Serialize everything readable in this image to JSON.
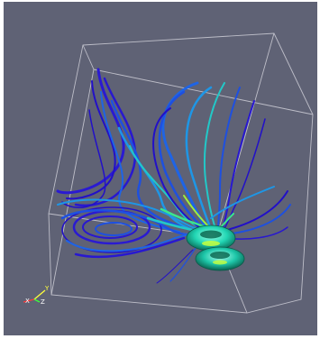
{
  "viewport": {
    "background": "#5f6275",
    "bounding_box_color": "#c8c8d2"
  },
  "orientation_axes": {
    "x_label": "X",
    "y_label": "Y",
    "z_label": "Z",
    "x_color": "#ff3b3b",
    "y_color": "#ffff3c",
    "z_color": "#3cff3c"
  },
  "streamlines": {
    "colormap": [
      "#2210c8",
      "#1e50e0",
      "#1e96e6",
      "#22c8c8",
      "#3ce68c",
      "#a0f03c"
    ]
  },
  "isosurface": {
    "upper_ring_color": "#22d6b4",
    "lower_ring_color": "#22d6b4",
    "core_color": "#c8ff3c"
  }
}
